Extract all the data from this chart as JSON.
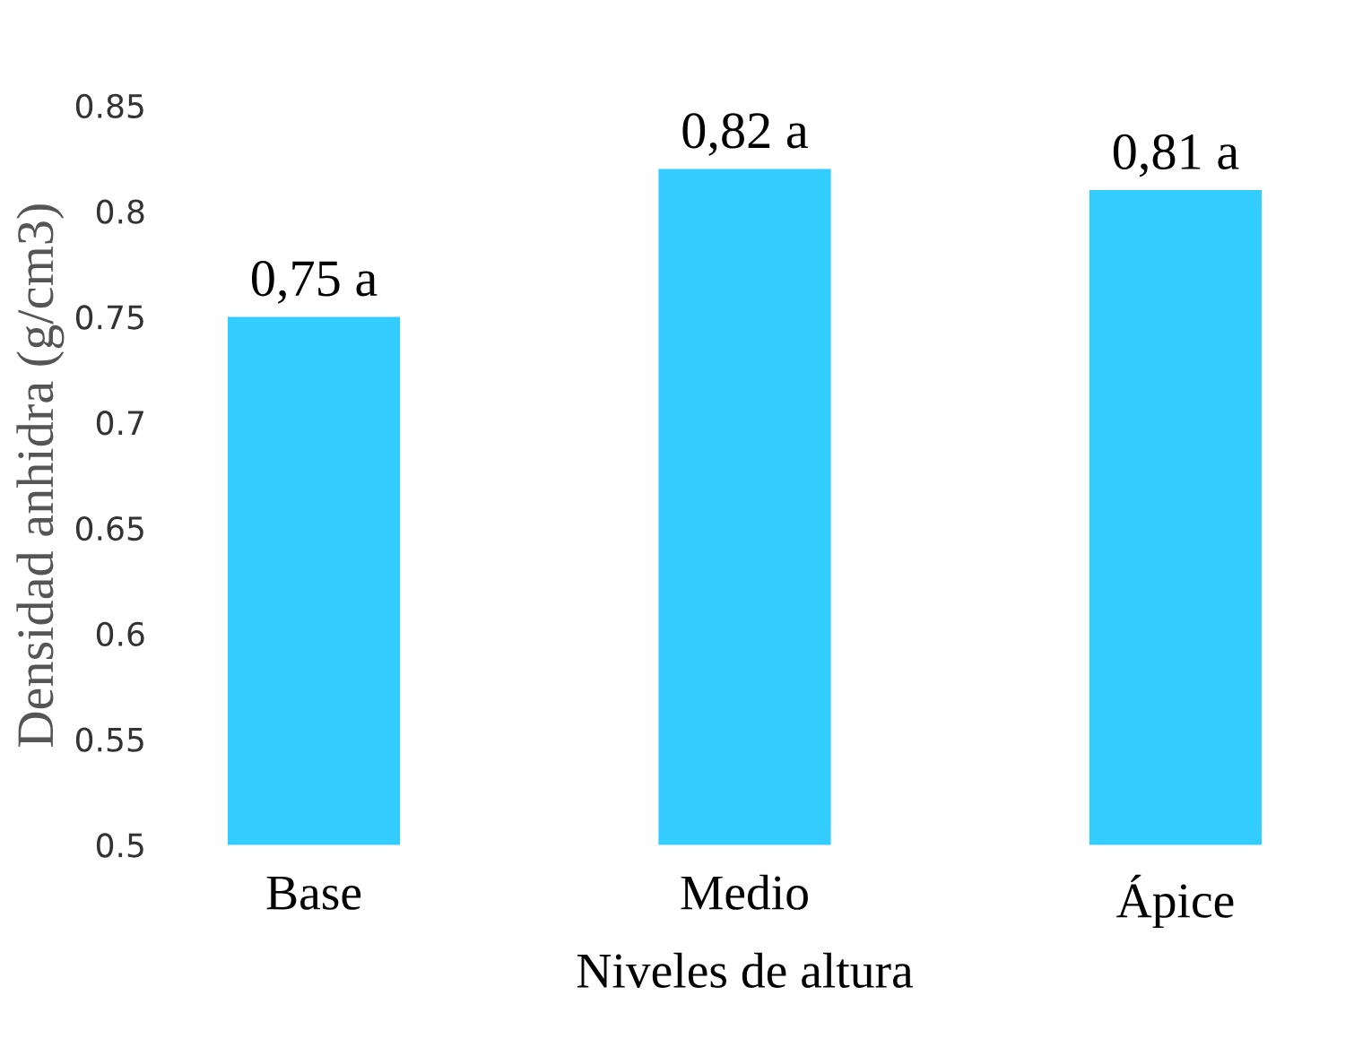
{
  "chart_data": {
    "type": "bar",
    "xlabel": "Niveles de altura",
    "ylabel": "Densidad anhidra (g/cm3)",
    "categories": [
      "Base",
      "Medio",
      "Ápice"
    ],
    "values": [
      0.75,
      0.82,
      0.81
    ],
    "value_labels": [
      "0,75 a",
      "0,82 a",
      "0,81 a"
    ],
    "color": "#33ccff",
    "ylim": [
      0.5,
      0.85
    ],
    "yticks": [
      0.5,
      0.55,
      0.6,
      0.65,
      0.7,
      0.75,
      0.8,
      0.85
    ],
    "grid": false,
    "legend": false
  }
}
